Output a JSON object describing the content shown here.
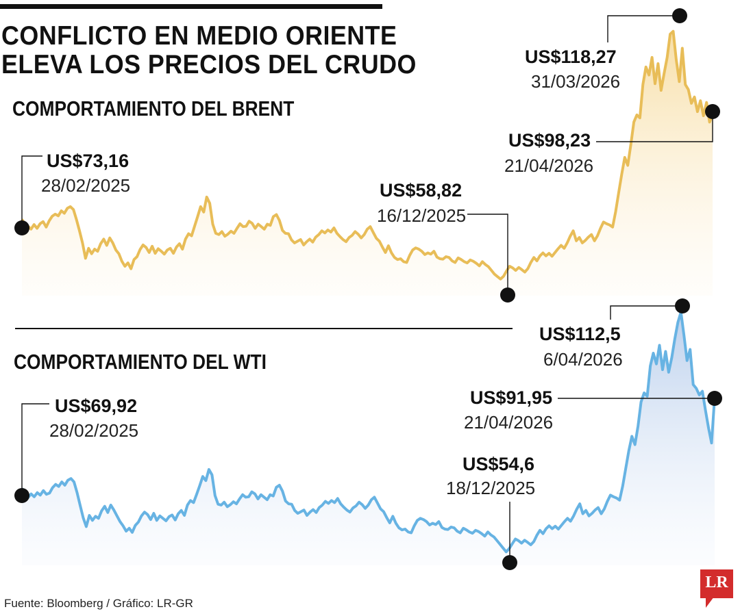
{
  "title_line1": "CONFLICTO EN MEDIO ORIENTE",
  "title_line2": "ELEVA LOS PRECIOS DEL CRUDO",
  "source": "Fuente: Bloomberg / Gráfico: LR-GR",
  "logo_text": "LR",
  "colors": {
    "brent": "#e8bd58",
    "wti": "#67b3e3",
    "marker": "#111111"
  },
  "chart_data": [
    {
      "type": "area",
      "title": "COMPORTAMIENTO DEL BRENT",
      "unit": "US$",
      "x_range": [
        "28/02/2025",
        "21/04/2026"
      ],
      "ylim": [
        55,
        122
      ],
      "series": [
        {
          "name": "Brent",
          "values": [
            73.16,
            72.0,
            71.5,
            70.8,
            71.9,
            71.0,
            72.1,
            72.6,
            71.3,
            72.8,
            73.9,
            74.4,
            74.0,
            75.2,
            74.6,
            75.8,
            76.2,
            75.5,
            73.1,
            70.4,
            67.5,
            63.8,
            66.2,
            64.9,
            66.0,
            65.5,
            67.3,
            68.4,
            66.9,
            68.7,
            67.5,
            65.8,
            64.9,
            63.1,
            61.9,
            62.7,
            61.3,
            63.5,
            64.2,
            65.9,
            67.0,
            66.4,
            65.2,
            66.7,
            65.0,
            66.1,
            65.5,
            64.8,
            65.8,
            66.2,
            65.0,
            66.5,
            67.3,
            66.0,
            68.4,
            69.7,
            69.2,
            71.5,
            73.8,
            76.2,
            74.9,
            78.5,
            77.0,
            72.0,
            69.8,
            69.5,
            70.2,
            69.1,
            69.6,
            70.3,
            69.8,
            71.0,
            72.1,
            71.4,
            71.5,
            72.7,
            72.2,
            71.0,
            72.0,
            71.4,
            70.8,
            72.0,
            71.7,
            73.8,
            74.3,
            72.9,
            70.5,
            69.8,
            69.7,
            68.2,
            67.5,
            67.9,
            68.3,
            67.0,
            67.8,
            68.4,
            67.7,
            68.9,
            69.5,
            70.4,
            69.9,
            70.6,
            70.1,
            71.1,
            69.8,
            69.0,
            68.3,
            67.8,
            68.8,
            69.3,
            70.2,
            69.6,
            68.7,
            69.5,
            70.8,
            71.4,
            70.0,
            68.6,
            67.9,
            66.5,
            65.2,
            66.8,
            65.1,
            64.0,
            63.5,
            63.7,
            63.0,
            62.8,
            64.5,
            65.8,
            66.3,
            66.0,
            65.5,
            64.7,
            65.1,
            64.8,
            65.5,
            64.1,
            63.7,
            63.6,
            64.2,
            64.0,
            63.2,
            62.8,
            63.9,
            63.5,
            63.0,
            62.7,
            63.4,
            63.1,
            62.6,
            62.0,
            63.0,
            62.3,
            61.8,
            60.9,
            60.0,
            59.4,
            58.82,
            59.5,
            60.8,
            61.9,
            61.5,
            60.9,
            61.6,
            61.1,
            60.5,
            61.3,
            62.8,
            64.0,
            63.2,
            64.4,
            65.1,
            64.4,
            65.0,
            64.3,
            65.2,
            66.1,
            66.9,
            66.2,
            67.5,
            69.1,
            70.4,
            68.0,
            68.8,
            67.5,
            68.1,
            68.9,
            69.5,
            68.0,
            69.2,
            71.0,
            72.5,
            72.1,
            71.8,
            71.3,
            75.0,
            79.5,
            84.0,
            88.0,
            86.1,
            91.0,
            96.5,
            98.2,
            97.5,
            105.5,
            109.7,
            107.8,
            112.0,
            105.7,
            110.5,
            104.1,
            108.2,
            112.0,
            117.6,
            118.27,
            111.5,
            106.2,
            114.2,
            105.5,
            104.3,
            101.0,
            102.5,
            99.0,
            101.6,
            98.0,
            101.2,
            96.5,
            98.23
          ]
        }
      ],
      "annotations": [
        {
          "value": "US$73,16",
          "date": "28/02/2025"
        },
        {
          "value": "US$58,82",
          "date": "16/12/2025"
        },
        {
          "value": "US$118,27",
          "date": "31/03/2026"
        },
        {
          "value": "US$98,23",
          "date": "21/04/2026"
        }
      ]
    },
    {
      "type": "area",
      "title": "COMPORTAMIENTO DEL WTI",
      "unit": "US$",
      "x_range": [
        "28/02/2025",
        "21/04/2026"
      ],
      "ylim": [
        52,
        114
      ],
      "series": [
        {
          "name": "WTI",
          "values": [
            69.92,
            68.8,
            67.7,
            68.6,
            67.9,
            68.9,
            68.3,
            69.4,
            68.5,
            68.8,
            70.1,
            70.9,
            70.4,
            71.5,
            70.7,
            71.9,
            72.3,
            71.5,
            68.9,
            65.8,
            62.8,
            60.7,
            63.4,
            62.2,
            63.2,
            62.7,
            64.5,
            65.6,
            64.1,
            65.9,
            64.7,
            63.3,
            61.9,
            60.9,
            59.6,
            60.3,
            59.3,
            61.0,
            61.8,
            63.3,
            64.2,
            63.6,
            62.4,
            63.9,
            62.2,
            63.3,
            62.7,
            62.1,
            63.1,
            63.5,
            62.3,
            63.8,
            64.6,
            63.4,
            65.9,
            67.0,
            66.5,
            68.5,
            70.6,
            72.8,
            71.8,
            74.5,
            73.2,
            68.2,
            66.1,
            65.9,
            66.6,
            65.5,
            66.0,
            66.7,
            66.2,
            67.4,
            68.4,
            67.8,
            67.9,
            69.1,
            68.6,
            67.4,
            68.4,
            67.8,
            67.2,
            68.4,
            68.1,
            70.2,
            70.7,
            69.3,
            66.9,
            66.2,
            66.1,
            64.6,
            63.9,
            64.3,
            64.7,
            63.4,
            64.2,
            64.8,
            64.1,
            65.3,
            65.9,
            66.8,
            66.3,
            67.0,
            66.5,
            67.5,
            66.2,
            65.4,
            64.7,
            64.2,
            65.2,
            65.7,
            66.6,
            66.0,
            65.1,
            65.9,
            67.2,
            67.8,
            66.4,
            65.0,
            64.3,
            62.9,
            61.6,
            63.2,
            61.5,
            60.4,
            59.9,
            60.1,
            59.4,
            59.2,
            60.9,
            62.2,
            62.7,
            62.4,
            61.9,
            61.1,
            61.5,
            61.2,
            61.9,
            60.5,
            60.1,
            60.0,
            60.6,
            60.4,
            59.6,
            59.2,
            60.3,
            59.9,
            59.4,
            59.1,
            59.8,
            59.5,
            59.0,
            58.4,
            59.4,
            58.7,
            58.2,
            57.3,
            56.4,
            55.5,
            54.6,
            55.4,
            56.6,
            57.7,
            57.3,
            56.7,
            57.4,
            56.9,
            56.3,
            57.1,
            58.6,
            59.8,
            59.0,
            60.2,
            60.9,
            60.2,
            60.8,
            60.1,
            61.0,
            61.9,
            62.7,
            62.0,
            63.3,
            64.9,
            66.2,
            63.8,
            64.6,
            63.3,
            63.9,
            64.7,
            65.3,
            63.8,
            65.0,
            66.8,
            68.3,
            67.9,
            67.6,
            67.1,
            70.5,
            74.8,
            79.0,
            82.5,
            80.5,
            85.0,
            90.8,
            93.0,
            92.2,
            99.5,
            102.6,
            100.0,
            104.5,
            98.6,
            103.0,
            98.0,
            101.5,
            106.0,
            110.0,
            112.5,
            106.8,
            100.8,
            103.5,
            95.0,
            94.1,
            92.5,
            93.4,
            88.8,
            84.5,
            80.9,
            91.95
          ]
        }
      ],
      "annotations": [
        {
          "value": "US$69,92",
          "date": "28/02/2025"
        },
        {
          "value": "US$54,6",
          "date": "18/12/2025"
        },
        {
          "value": "US$112,5",
          "date": "6/04/2026"
        },
        {
          "value": "US$91,95",
          "date": "21/04/2026"
        }
      ]
    }
  ]
}
